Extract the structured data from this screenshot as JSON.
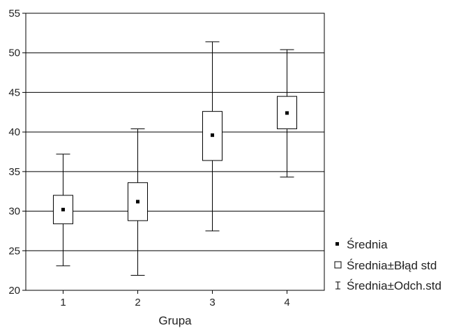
{
  "chart_data": {
    "type": "box",
    "xlabel": "Grupa",
    "ylabel": "",
    "categories": [
      "1",
      "2",
      "3",
      "4"
    ],
    "ylim": [
      20,
      55
    ],
    "yticks": [
      "20",
      "25",
      "30",
      "35",
      "40",
      "45",
      "50",
      "55"
    ],
    "grid": "horizontal",
    "legend_position": "bottom-right outside",
    "series": [
      {
        "name": "Średnia",
        "values": [
          30.2,
          31.2,
          39.6,
          42.4
        ]
      },
      {
        "name": "Średnia±Błąd std",
        "lower": [
          28.4,
          28.8,
          36.4,
          40.4
        ],
        "upper": [
          32.0,
          33.6,
          42.6,
          44.5
        ]
      },
      {
        "name": "Średnia±Odch.std",
        "lower": [
          23.1,
          21.9,
          27.5,
          34.3
        ],
        "upper": [
          37.2,
          40.4,
          51.4,
          50.4
        ]
      }
    ],
    "legend": [
      {
        "symbol": "filled-square",
        "label": "Średnia"
      },
      {
        "symbol": "open-square",
        "label": "Średnia±Błąd std"
      },
      {
        "symbol": "i-beam",
        "label": "Średnia±Odch.std"
      }
    ]
  }
}
